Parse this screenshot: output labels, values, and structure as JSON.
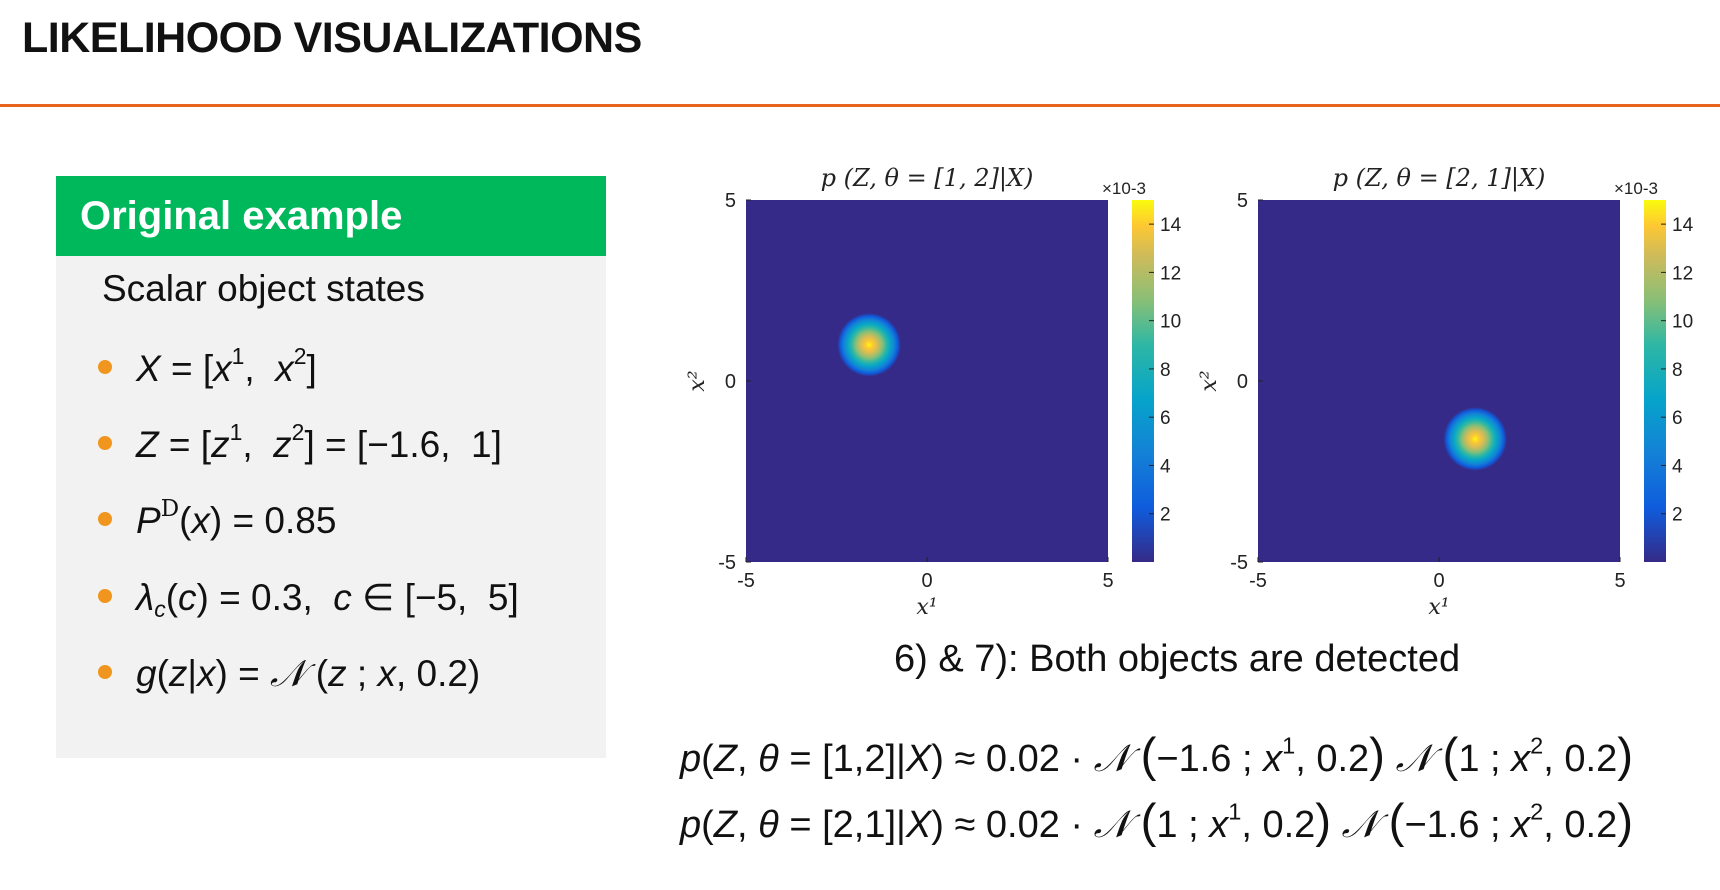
{
  "title": "LIKELIHOOD VISUALIZATIONS",
  "box": {
    "header": "Original example",
    "subtitle": "Scalar object states",
    "bullets": [
      {
        "id": "b1",
        "text": "X = [x¹,  x²]"
      },
      {
        "id": "b2",
        "text": "Z = [z¹,  z²] = [−1.6,  1]"
      },
      {
        "id": "b3",
        "text": "Pᴰ(x) = 0.85"
      },
      {
        "id": "b4",
        "text": "λc(c) = 0.3,  c ∈ [−5,  5]"
      },
      {
        "id": "b5",
        "text": "g(z|x) = 𝒩 (z ; x, 0.2)"
      }
    ],
    "bullet_color": "#f0961e",
    "header_color": "#00b85c"
  },
  "caption": "6) & 7): Both objects are detected",
  "equations": [
    "p(Z, θ = [1,2]|X) ≈ 0.02 · 𝒩 (−1.6 ; x¹, 0.2) 𝒩 (1 ; x², 0.2)",
    "p(Z, θ = [2,1]|X) ≈ 0.02 · 𝒩 (1 ; x¹, 0.2) 𝒩 (−1.6 ; x², 0.2)"
  ],
  "accent_color": "#e8641e",
  "chart_data": [
    {
      "type": "heatmap",
      "title": "p (Z, θ = [1,  2]|X)",
      "xlabel": "x¹",
      "ylabel": "x²",
      "xlim": [
        -5,
        5
      ],
      "ylim": [
        -5,
        5
      ],
      "xticks": [
        "-5",
        "0",
        "5"
      ],
      "yticks": [
        "5",
        "0",
        "-5"
      ],
      "peak": {
        "x": -1.6,
        "y": 1,
        "sigma": 0.45
      },
      "colorbar": {
        "multiplier": "×10-3",
        "ticks": [
          "14",
          "12",
          "10",
          "8",
          "6",
          "4",
          "2"
        ],
        "range": [
          0,
          15
        ]
      }
    },
    {
      "type": "heatmap",
      "title": "p (Z, θ = [2,  1]|X)",
      "xlabel": "x¹",
      "ylabel": "x²",
      "xlim": [
        -5,
        5
      ],
      "ylim": [
        -5,
        5
      ],
      "xticks": [
        "-5",
        "0",
        "5"
      ],
      "yticks": [
        "5",
        "0",
        "-5"
      ],
      "peak": {
        "x": 1,
        "y": -1.6,
        "sigma": 0.45
      },
      "colorbar": {
        "multiplier": "×10-3",
        "ticks": [
          "14",
          "12",
          "10",
          "8",
          "6",
          "4",
          "2"
        ],
        "range": [
          0,
          15
        ]
      }
    }
  ]
}
